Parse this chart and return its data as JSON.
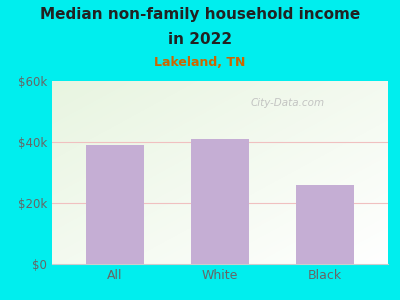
{
  "categories": [
    "All",
    "White",
    "Black"
  ],
  "values": [
    39000,
    41000,
    26000
  ],
  "bar_color": "#c5aed4",
  "title_line1": "Median non-family household income",
  "title_line2": "in 2022",
  "subtitle": "Lakeland, TN",
  "title_color": "#222222",
  "subtitle_color": "#cc6600",
  "bg_color": "#00EEEE",
  "plot_bg_color": "#e8f5e0",
  "ymin": 0,
  "ymax": 60000,
  "yticks": [
    0,
    20000,
    40000,
    60000
  ],
  "ytick_labels": [
    "$0",
    "$20k",
    "$40k",
    "$60k"
  ],
  "watermark": "City-Data.com",
  "watermark_color": "#bbbbbb",
  "gridline_color": "#f0c0c0",
  "axis_color": "#cccccc",
  "tick_color": "#666666"
}
